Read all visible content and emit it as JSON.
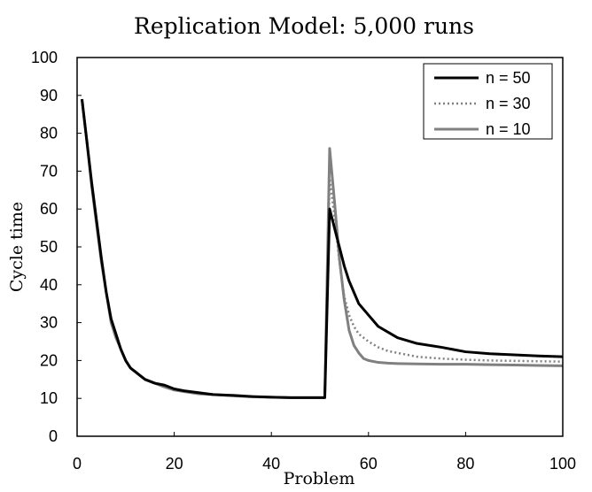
{
  "chart_data": {
    "type": "line",
    "title": "Replication Model: 5,000 runs",
    "xlabel": "Problem",
    "ylabel": "Cycle time",
    "xlim": [
      0,
      100
    ],
    "ylim": [
      0,
      100
    ],
    "x_ticks": [
      "0",
      "20",
      "40",
      "60",
      "80",
      "100"
    ],
    "y_ticks": [
      "0",
      "10",
      "20",
      "30",
      "40",
      "50",
      "60",
      "70",
      "80",
      "90",
      "100"
    ],
    "legend_position": "top-right",
    "grid": false,
    "series": [
      {
        "name": "n = 50",
        "color": "#000000",
        "style": "solid",
        "points": [
          [
            1,
            89
          ],
          [
            2,
            78
          ],
          [
            3,
            67
          ],
          [
            4,
            57
          ],
          [
            5,
            47
          ],
          [
            6,
            38
          ],
          [
            7,
            31
          ],
          [
            8,
            27
          ],
          [
            9,
            23
          ],
          [
            10,
            20
          ],
          [
            11,
            18
          ],
          [
            12,
            17
          ],
          [
            13,
            16
          ],
          [
            14,
            15
          ],
          [
            16,
            14
          ],
          [
            18,
            13.5
          ],
          [
            20,
            12.5
          ],
          [
            22,
            12
          ],
          [
            25,
            11.5
          ],
          [
            28,
            11
          ],
          [
            32,
            10.8
          ],
          [
            36,
            10.5
          ],
          [
            40,
            10.3
          ],
          [
            44,
            10.2
          ],
          [
            48,
            10.2
          ],
          [
            51,
            10.2
          ],
          [
            52,
            60
          ],
          [
            53,
            55
          ],
          [
            54,
            50
          ],
          [
            55,
            45
          ],
          [
            56,
            41
          ],
          [
            57,
            38
          ],
          [
            58,
            35
          ],
          [
            60,
            32
          ],
          [
            62,
            29
          ],
          [
            64,
            27.5
          ],
          [
            66,
            26
          ],
          [
            70,
            24.5
          ],
          [
            75,
            23.5
          ],
          [
            80,
            22.3
          ],
          [
            85,
            21.8
          ],
          [
            90,
            21.5
          ],
          [
            95,
            21.2
          ],
          [
            100,
            21
          ]
        ]
      },
      {
        "name": "n = 30",
        "color": "#808080",
        "style": "dotted",
        "points": [
          [
            1,
            89
          ],
          [
            2,
            78
          ],
          [
            3,
            67
          ],
          [
            4,
            57
          ],
          [
            5,
            47
          ],
          [
            6,
            38
          ],
          [
            7,
            31
          ],
          [
            8,
            27
          ],
          [
            9,
            23
          ],
          [
            10,
            20
          ],
          [
            11,
            18
          ],
          [
            12,
            17
          ],
          [
            13,
            16
          ],
          [
            14,
            15
          ],
          [
            16,
            14
          ],
          [
            18,
            13.2
          ],
          [
            20,
            12.3
          ],
          [
            22,
            11.8
          ],
          [
            25,
            11.3
          ],
          [
            28,
            11
          ],
          [
            32,
            10.7
          ],
          [
            36,
            10.4
          ],
          [
            40,
            10.3
          ],
          [
            44,
            10.2
          ],
          [
            48,
            10.2
          ],
          [
            51,
            10.2
          ],
          [
            52,
            68
          ],
          [
            53,
            58
          ],
          [
            54,
            46
          ],
          [
            55,
            37
          ],
          [
            56,
            32
          ],
          [
            57,
            29
          ],
          [
            58,
            27
          ],
          [
            60,
            25
          ],
          [
            62,
            23.5
          ],
          [
            64,
            22.5
          ],
          [
            66,
            22
          ],
          [
            70,
            21
          ],
          [
            75,
            20.5
          ],
          [
            80,
            20.2
          ],
          [
            85,
            20
          ],
          [
            90,
            19.9
          ],
          [
            95,
            19.8
          ],
          [
            100,
            19.7
          ]
        ]
      },
      {
        "name": "n = 10",
        "color": "#808080",
        "style": "solid",
        "points": [
          [
            1,
            89
          ],
          [
            2,
            78
          ],
          [
            3,
            66
          ],
          [
            4,
            56
          ],
          [
            5,
            46
          ],
          [
            6,
            38
          ],
          [
            7,
            30
          ],
          [
            8,
            26
          ],
          [
            9,
            23
          ],
          [
            10,
            20
          ],
          [
            11,
            18
          ],
          [
            12,
            17
          ],
          [
            13,
            16
          ],
          [
            14,
            15
          ],
          [
            16,
            14
          ],
          [
            18,
            13
          ],
          [
            20,
            12.2
          ],
          [
            22,
            11.8
          ],
          [
            25,
            11.2
          ],
          [
            28,
            11
          ],
          [
            32,
            10.7
          ],
          [
            36,
            10.4
          ],
          [
            40,
            10.3
          ],
          [
            44,
            10.2
          ],
          [
            48,
            10.2
          ],
          [
            51,
            10.2
          ],
          [
            52,
            76
          ],
          [
            53,
            62
          ],
          [
            54,
            47
          ],
          [
            55,
            36
          ],
          [
            56,
            28
          ],
          [
            57,
            24
          ],
          [
            58,
            22
          ],
          [
            59,
            20.5
          ],
          [
            60,
            20
          ],
          [
            62,
            19.5
          ],
          [
            64,
            19.3
          ],
          [
            66,
            19.2
          ],
          [
            70,
            19.1
          ],
          [
            75,
            19
          ],
          [
            80,
            19
          ],
          [
            85,
            18.9
          ],
          [
            90,
            18.8
          ],
          [
            95,
            18.7
          ],
          [
            100,
            18.6
          ]
        ]
      }
    ]
  }
}
